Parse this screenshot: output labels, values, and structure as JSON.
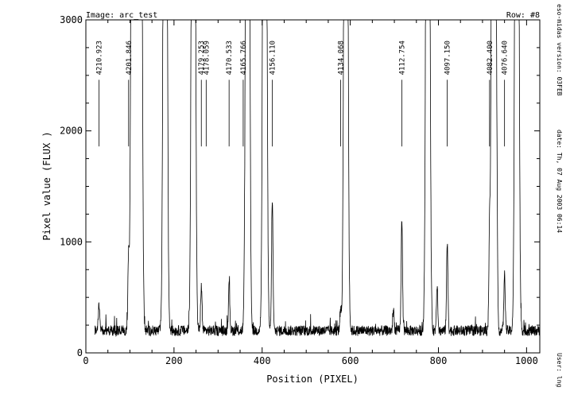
{
  "header": {
    "image_label": "Image: arc_test",
    "row_label": "Row: #8"
  },
  "side": {
    "version": "eso-midas version: 03FEB",
    "date": "date: Th, 07 Aug 2003 06:14",
    "user": "User: lng"
  },
  "chart_data": {
    "type": "line",
    "xlabel": "Position (PIXEL)",
    "ylabel": "Pixel value (FLUX )",
    "xlim": [
      0,
      1030
    ],
    "ylim": [
      0,
      3000
    ],
    "xticks": [
      0,
      200,
      400,
      600,
      800,
      1000
    ],
    "yticks": [
      0,
      1000,
      2000,
      3000
    ],
    "x_tick_labels": [
      "0",
      "200",
      "400",
      "600",
      "800",
      "1000"
    ],
    "y_tick_labels": [
      "0",
      "1000",
      "2000",
      "3000"
    ],
    "grid": false,
    "baseline": 200,
    "peaks": [
      {
        "x": 30,
        "y": 450
      },
      {
        "x": 97,
        "y": 850
      },
      {
        "x": 107,
        "y": 3000
      },
      {
        "x": 113,
        "y": 3000
      },
      {
        "x": 123,
        "y": 3000
      },
      {
        "x": 180,
        "y": 3000
      },
      {
        "x": 244,
        "y": 3000
      },
      {
        "x": 262,
        "y": 600
      },
      {
        "x": 325,
        "y": 620
      },
      {
        "x": 367,
        "y": 3000
      },
      {
        "x": 406,
        "y": 3000
      },
      {
        "x": 423,
        "y": 1380
      },
      {
        "x": 578,
        "y": 400
      },
      {
        "x": 590,
        "y": 3000
      },
      {
        "x": 698,
        "y": 380
      },
      {
        "x": 717,
        "y": 1200
      },
      {
        "x": 776,
        "y": 3000
      },
      {
        "x": 797,
        "y": 620
      },
      {
        "x": 820,
        "y": 980
      },
      {
        "x": 916,
        "y": 1030
      },
      {
        "x": 925,
        "y": 3000
      },
      {
        "x": 932,
        "y": 1560
      },
      {
        "x": 950,
        "y": 700
      },
      {
        "x": 978,
        "y": 3000
      }
    ],
    "annotations": [
      {
        "label": "4210.923",
        "x": 30
      },
      {
        "label": "4201.846",
        "x": 97
      },
      {
        "label": "4179.253",
        "x": 262
      },
      {
        "label": "4178.059",
        "x": 273
      },
      {
        "label": "4170.533",
        "x": 325
      },
      {
        "label": "4165.766",
        "x": 357
      },
      {
        "label": "4156.110",
        "x": 423
      },
      {
        "label": "4134.068",
        "x": 578
      },
      {
        "label": "4112.754",
        "x": 717
      },
      {
        "label": "4097.150",
        "x": 820
      },
      {
        "label": "4082.400",
        "x": 916
      },
      {
        "label": "4076.640",
        "x": 950
      }
    ],
    "annotation_line_range": [
      1860,
      2460
    ]
  }
}
